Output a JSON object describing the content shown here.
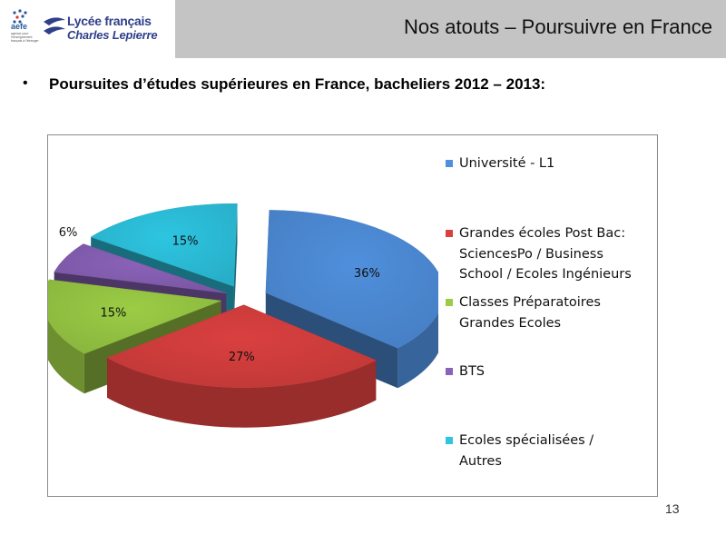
{
  "header": {
    "logo_aefe": "aefe",
    "logo_aefe_small": "agence pour l'enseignement français à l'étranger",
    "logo_name_line1": "Lycée français",
    "logo_name_line2": "Charles Lepierre",
    "title": "Nos atouts – Poursuivre en France",
    "title_bar_color": "#c4c4c4"
  },
  "bullet": {
    "text": "Poursuites d’études supérieures en France, bacheliers 2012 – 2013:"
  },
  "chart_data": {
    "type": "pie",
    "title": "",
    "slices": [
      {
        "label": "Université - L1",
        "value": 36,
        "display": "36%",
        "color": "#4f8fdc"
      },
      {
        "label": "Grandes écoles Post Bac: SciencesPo / Business School / Ecoles Ingénieurs",
        "value": 27,
        "display": "27%",
        "color": "#d9403f"
      },
      {
        "label": "Classes Préparatoires Grandes Ecoles",
        "value": 15,
        "display": "15%",
        "color": "#9bcc45"
      },
      {
        "label": "BTS",
        "value": 6,
        "display": "6%",
        "color": "#8a62b8"
      },
      {
        "label": "Ecoles spécialisées / Autres",
        "value": 15,
        "display": "15%",
        "color": "#2dc5e1"
      }
    ],
    "legend_position": "right",
    "exploded": true,
    "style": "3d"
  },
  "legend": {
    "items": [
      {
        "line1": "Université - L1",
        "line2": "",
        "line3": ""
      },
      {
        "line1": "Grandes écoles Post Bac:",
        "line2": "SciencesPo / Business",
        "line3": "School / Ecoles Ingénieurs"
      },
      {
        "line1": "Classes Préparatoires",
        "line2": "Grandes Ecoles",
        "line3": ""
      },
      {
        "line1": "BTS",
        "line2": "",
        "line3": ""
      },
      {
        "line1": "Ecoles spécialisées /",
        "line2": "Autres",
        "line3": ""
      }
    ]
  },
  "footer": {
    "page_number": "13"
  }
}
